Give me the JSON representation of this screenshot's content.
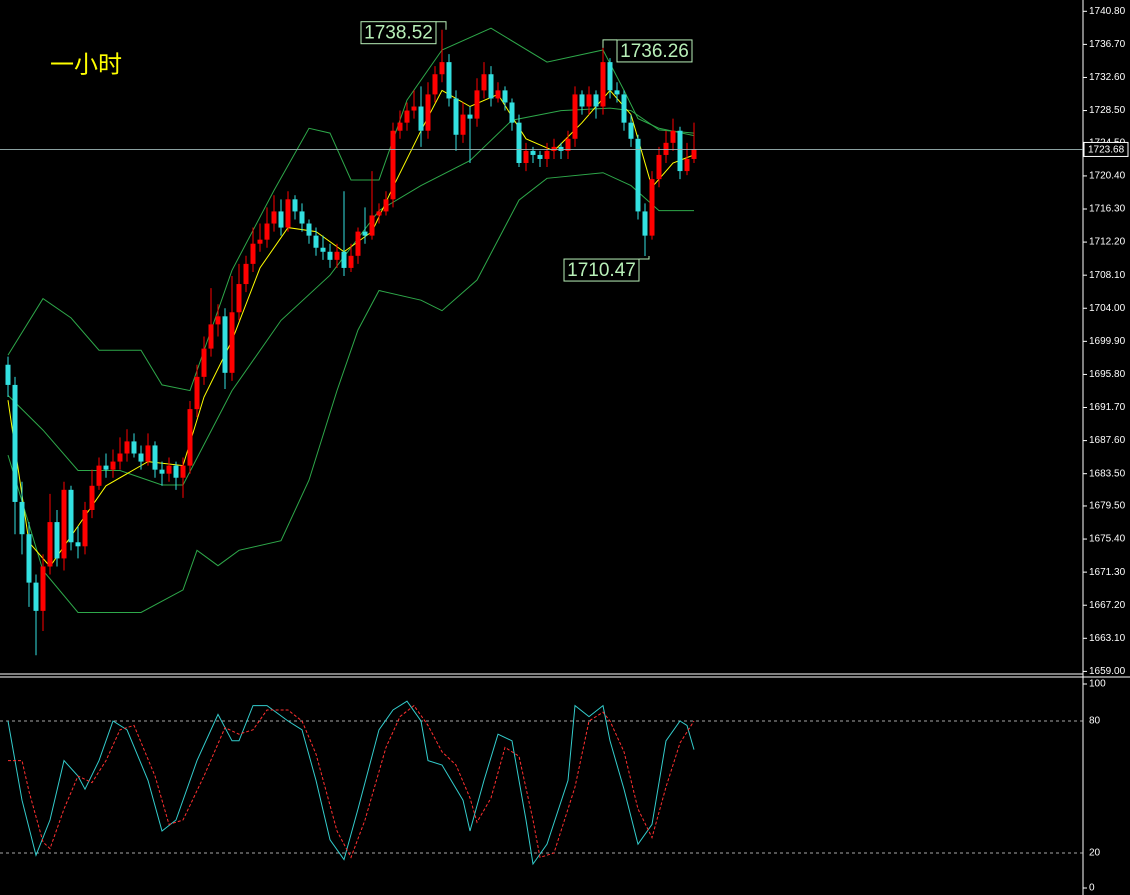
{
  "chart_data": [
    {
      "type": "candlestick",
      "title": "一小时",
      "open": [
        1697.0,
        1694.5,
        1680.0,
        1676.0,
        1670.0,
        1666.5,
        1672.0,
        1677.5,
        1673.0,
        1681.5,
        1675.0,
        1674.5,
        1679.0,
        1682.0,
        1684.5,
        1684.0,
        1685.0,
        1686.0,
        1687.5,
        1686.0,
        1685.0,
        1687.0,
        1684.0,
        1683.5,
        1684.5,
        1683.0,
        1684.5,
        1691.5,
        1695.5,
        1699.0,
        1702.0,
        1703.0,
        1696.0,
        1703.5,
        1707.0,
        1709.5,
        1712.0,
        1712.5,
        1714.5,
        1716.0,
        1714.0,
        1717.5,
        1716.0,
        1714.5,
        1713.0,
        1711.5,
        1711.0,
        1710.0,
        1711.0,
        1709.0,
        1710.5,
        1713.5,
        1713.0,
        1715.5,
        1716.0,
        1717.5,
        1726.0,
        1727.0,
        1728.5,
        1729.0,
        1726.0,
        1730.5,
        1733.0,
        1734.5,
        1730.0,
        1725.5,
        1728.0,
        1727.5,
        1731.0,
        1733.0,
        1730.0,
        1731.0,
        1729.5,
        1727.0,
        1722.0,
        1723.5,
        1723.0,
        1722.5,
        1723.5,
        1724.0,
        1723.5,
        1725.0,
        1730.5,
        1729.0,
        1730.5,
        1729.0,
        1734.5,
        1731.0,
        1730.5,
        1727.0,
        1725.0,
        1716.0,
        1713.0,
        1720.0,
        1723.0,
        1724.5,
        1726.0,
        1721.0,
        1722.5
      ],
      "high": [
        1698.0,
        1695.5,
        1682.5,
        1677.5,
        1671.0,
        1673.5,
        1681.0,
        1679.0,
        1682.5,
        1682.0,
        1677.0,
        1680.0,
        1684.0,
        1685.5,
        1686.0,
        1686.5,
        1688.0,
        1689.0,
        1688.5,
        1687.0,
        1688.5,
        1687.5,
        1685.0,
        1685.5,
        1685.0,
        1685.5,
        1692.5,
        1697.0,
        1700.5,
        1706.5,
        1704.5,
        1704.0,
        1708.0,
        1709.5,
        1710.5,
        1714.0,
        1714.5,
        1716.5,
        1718.0,
        1717.5,
        1718.5,
        1718.0,
        1717.0,
        1715.0,
        1714.0,
        1713.0,
        1712.0,
        1712.0,
        1718.5,
        1712.0,
        1714.0,
        1716.5,
        1721.0,
        1717.0,
        1718.5,
        1727.0,
        1728.5,
        1729.5,
        1731.0,
        1731.5,
        1732.0,
        1734.0,
        1738.52,
        1735.5,
        1731.0,
        1729.5,
        1729.0,
        1732.5,
        1734.5,
        1734.0,
        1732.0,
        1731.5,
        1730.0,
        1728.0,
        1724.5,
        1724.0,
        1723.5,
        1724.5,
        1725.0,
        1724.5,
        1726.0,
        1731.5,
        1731.0,
        1731.5,
        1731.0,
        1736.26,
        1735.0,
        1732.0,
        1731.0,
        1728.0,
        1725.5,
        1717.0,
        1721.0,
        1724.0,
        1726.0,
        1727.5,
        1726.5,
        1724.5,
        1727.0
      ],
      "low": [
        1693.0,
        1676.0,
        1673.5,
        1667.0,
        1661.0,
        1664.0,
        1671.0,
        1672.0,
        1671.5,
        1674.0,
        1673.0,
        1673.5,
        1678.0,
        1681.5,
        1683.0,
        1683.0,
        1684.0,
        1685.0,
        1685.5,
        1684.0,
        1684.5,
        1683.0,
        1682.0,
        1682.5,
        1681.5,
        1680.5,
        1683.5,
        1690.5,
        1694.5,
        1698.0,
        1700.5,
        1694.0,
        1695.0,
        1702.5,
        1706.0,
        1708.5,
        1711.0,
        1711.5,
        1713.5,
        1713.0,
        1713.5,
        1715.0,
        1713.5,
        1712.0,
        1710.5,
        1710.0,
        1709.0,
        1709.0,
        1708.0,
        1708.5,
        1709.5,
        1712.0,
        1712.5,
        1714.5,
        1715.5,
        1716.5,
        1725.0,
        1726.0,
        1727.5,
        1724.0,
        1725.0,
        1729.5,
        1732.0,
        1729.0,
        1723.5,
        1724.5,
        1722.0,
        1726.5,
        1730.0,
        1729.0,
        1729.5,
        1728.5,
        1726.0,
        1721.5,
        1721.0,
        1722.0,
        1721.5,
        1721.5,
        1722.5,
        1722.5,
        1722.5,
        1724.0,
        1728.0,
        1728.0,
        1727.5,
        1728.0,
        1730.0,
        1729.5,
        1726.0,
        1724.0,
        1715.0,
        1710.47,
        1712.5,
        1719.0,
        1722.0,
        1723.5,
        1720.0,
        1720.5,
        1722.0
      ],
      "close": [
        1694.5,
        1680.0,
        1676.0,
        1670.0,
        1666.5,
        1672.0,
        1677.5,
        1673.0,
        1681.5,
        1675.0,
        1674.5,
        1679.0,
        1682.0,
        1684.5,
        1684.0,
        1685.0,
        1686.0,
        1687.5,
        1686.0,
        1685.0,
        1687.0,
        1684.0,
        1683.5,
        1684.5,
        1683.0,
        1684.5,
        1691.5,
        1695.5,
        1699.0,
        1702.0,
        1703.0,
        1696.0,
        1703.5,
        1707.0,
        1709.5,
        1712.0,
        1712.5,
        1714.5,
        1716.0,
        1714.0,
        1717.5,
        1716.0,
        1714.5,
        1713.0,
        1711.5,
        1711.0,
        1710.0,
        1711.0,
        1709.0,
        1710.5,
        1713.5,
        1713.0,
        1715.5,
        1716.0,
        1717.5,
        1726.0,
        1727.0,
        1728.5,
        1729.0,
        1726.0,
        1730.5,
        1733.0,
        1734.5,
        1730.0,
        1725.5,
        1728.0,
        1727.5,
        1731.0,
        1733.0,
        1730.0,
        1731.0,
        1729.5,
        1727.0,
        1722.0,
        1723.5,
        1723.0,
        1722.5,
        1723.5,
        1724.0,
        1723.5,
        1725.0,
        1730.5,
        1729.0,
        1730.5,
        1729.0,
        1734.5,
        1731.0,
        1730.5,
        1727.0,
        1725.0,
        1716.0,
        1713.0,
        1720.0,
        1723.0,
        1724.5,
        1726.0,
        1721.0,
        1722.5,
        1723.68
      ],
      "up_color": "#ff0000",
      "down_color": "#33e0e0",
      "overlays": [
        {
          "color": "#2ea84a",
          "x": [
            0,
            5,
            9,
            13,
            19,
            22,
            26,
            32,
            38,
            43,
            46,
            49,
            53,
            57,
            62,
            69,
            77,
            85,
            88,
            90,
            93,
            98
          ],
          "values": [
            1698.2,
            1705.2,
            1702.8,
            1698.8,
            1698.8,
            1694.5,
            1693.8,
            1708.7,
            1718.6,
            1726.3,
            1725.7,
            1719.9,
            1719.9,
            1729.8,
            1736.0,
            1738.7,
            1734.5,
            1736.0,
            1731.0,
            1727.5,
            1726.3,
            1725.4
          ]
        },
        {
          "color": "#2ea84a",
          "x": [
            0,
            5,
            10,
            16,
            22,
            25,
            32,
            39,
            46,
            53,
            59,
            66,
            72,
            79,
            86,
            89,
            93,
            98
          ],
          "values": [
            1693.2,
            1688.9,
            1683.9,
            1683.9,
            1682.1,
            1682.1,
            1693.8,
            1702.5,
            1708.1,
            1716.1,
            1719.2,
            1722.3,
            1727.3,
            1728.5,
            1728.8,
            1728.5,
            1726.1,
            1725.7
          ]
        },
        {
          "color": "#2ea84a",
          "x": [
            0,
            5,
            10,
            19,
            25,
            27,
            30,
            33,
            39,
            43,
            47,
            50,
            53,
            59,
            62,
            67,
            73,
            77,
            85,
            89,
            93,
            98
          ],
          "values": [
            1685.8,
            1671.5,
            1666.3,
            1666.3,
            1669.1,
            1674.0,
            1672.1,
            1674.0,
            1675.2,
            1682.7,
            1693.8,
            1701.3,
            1706.2,
            1705.0,
            1703.7,
            1707.5,
            1717.4,
            1720.1,
            1720.8,
            1719.2,
            1716.1,
            1716.1
          ]
        },
        {
          "color": "#ffff00",
          "x": [
            0,
            3,
            6,
            10,
            14,
            20,
            25,
            28,
            32,
            36,
            40,
            44,
            48,
            52,
            55,
            59,
            62,
            66,
            70,
            74,
            78,
            82,
            86,
            89,
            92,
            95,
            98
          ],
          "values": [
            1692.6,
            1675.0,
            1672.0,
            1677.0,
            1682.0,
            1685.0,
            1684.5,
            1693.0,
            1700.0,
            1709.0,
            1714.0,
            1713.5,
            1711.0,
            1713.5,
            1719.0,
            1726.0,
            1731.0,
            1729.0,
            1730.5,
            1725.0,
            1723.5,
            1727.0,
            1731.0,
            1728.0,
            1719.0,
            1722.0,
            1723.0
          ]
        }
      ],
      "price_labels": [
        1738.52,
        1736.26,
        1710.47
      ],
      "ylim": [
        1658.8,
        1742.2
      ],
      "yticks": [
        {
          "value": 1740.8,
          "label": "1740.80"
        },
        {
          "value": 1736.7,
          "label": "1736.70"
        },
        {
          "value": 1732.6,
          "label": "1732.60"
        },
        {
          "value": 1728.5,
          "label": "1728.50"
        },
        {
          "value": 1724.5,
          "label": "1724.50"
        },
        {
          "value": 1720.4,
          "label": "1720.40"
        },
        {
          "value": 1716.3,
          "label": "1716.30"
        },
        {
          "value": 1712.2,
          "label": "1712.20"
        },
        {
          "value": 1708.1,
          "label": "1708.10"
        },
        {
          "value": 1704.0,
          "label": "1704.00"
        },
        {
          "value": 1699.9,
          "label": "1699.90"
        },
        {
          "value": 1695.8,
          "label": "1695.80"
        },
        {
          "value": 1691.7,
          "label": "1691.70"
        },
        {
          "value": 1687.6,
          "label": "1687.60"
        },
        {
          "value": 1683.5,
          "label": "1683.50"
        },
        {
          "value": 1679.5,
          "label": "1679.50"
        },
        {
          "value": 1675.4,
          "label": "1675.40"
        },
        {
          "value": 1671.3,
          "label": "1671.30"
        },
        {
          "value": 1667.2,
          "label": "1667.20"
        },
        {
          "value": 1663.1,
          "label": "1663.10"
        },
        {
          "value": 1659.0,
          "label": "1659.00"
        }
      ]
    },
    {
      "type": "line",
      "series": [
        {
          "color": "#33cccc",
          "x": [
            0,
            2,
            4,
            6,
            8,
            10,
            11,
            13,
            15,
            17,
            20,
            22,
            24,
            27,
            30,
            32,
            33,
            35,
            37,
            40,
            42,
            44,
            46,
            48,
            50,
            53,
            55,
            57,
            59,
            60,
            62,
            65,
            66,
            68,
            70,
            72,
            74,
            75,
            77,
            80,
            81,
            83,
            85,
            86,
            88,
            90,
            92,
            94,
            96,
            97,
            98
          ],
          "values": [
            80,
            44,
            19,
            35,
            62,
            55,
            49,
            62,
            80,
            76,
            53,
            30,
            35,
            62,
            83,
            71,
            71,
            87,
            87,
            80,
            76,
            53,
            26,
            17,
            40,
            76,
            85,
            89,
            80,
            62,
            60,
            44,
            30,
            53,
            74,
            71,
            35,
            15,
            24,
            53,
            87,
            82,
            87,
            71,
            49,
            24,
            33,
            71,
            80,
            78,
            67
          ]
        },
        {
          "color": "#ff3030",
          "dashed": true,
          "x": [
            0,
            2,
            3,
            5,
            6,
            8,
            10,
            12,
            14,
            16,
            18,
            21,
            23,
            25,
            28,
            31,
            33,
            35,
            37,
            40,
            42,
            44,
            47,
            49,
            51,
            54,
            56,
            58,
            60,
            62,
            64,
            66,
            67,
            69,
            71,
            73,
            75,
            76,
            78,
            81,
            83,
            85,
            86,
            88,
            90,
            92,
            94,
            96,
            98
          ],
          "values": [
            62,
            62,
            48,
            25,
            22,
            40,
            55,
            52,
            62,
            76,
            78,
            55,
            33,
            35,
            55,
            77,
            74,
            76,
            85,
            85,
            80,
            65,
            30,
            18,
            35,
            68,
            82,
            87,
            78,
            66,
            60,
            45,
            34,
            45,
            68,
            64,
            35,
            18,
            20,
            50,
            80,
            84,
            80,
            66,
            40,
            27,
            50,
            70,
            80
          ]
        }
      ],
      "ylim": [
        0,
        100
      ],
      "yticks": [
        0,
        20,
        80,
        100
      ]
    }
  ]
}
